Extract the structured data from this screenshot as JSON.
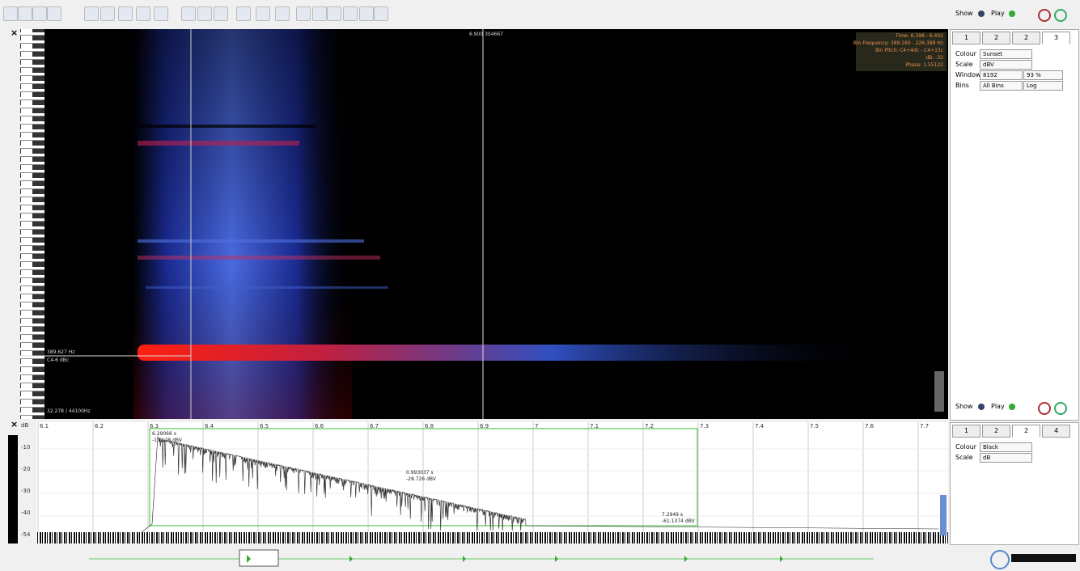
{
  "spectrogram": {
    "cursor_time": "6.900 304667",
    "frequency": "389.627 Hz",
    "note": "C4-6 dBc",
    "sample_rate": "32.278 / 44100Hz",
    "info": [
      "Time: 6.398 - 6.402",
      "Bin Frequency: 389.160 - 226.388 Hz",
      "Bin Pitch: C4+4dc - C4+13c",
      "dB: -32",
      "Phase: 1.55122"
    ]
  },
  "waveform": {
    "y_labels": [
      "dB",
      "-10",
      "-20",
      "-30",
      "-40",
      "-54"
    ],
    "ruler": [
      "6.1",
      "6.2",
      "6.3",
      "6.4",
      "6.5",
      "6.6",
      "6.7",
      "6.8",
      "6.9",
      "7",
      "7.1",
      "7.2",
      "7.3",
      "7.4",
      "7.5",
      "7.6",
      "7.7"
    ],
    "start_marker": [
      "6.29066 s",
      "-1.0128 dBV"
    ],
    "measure": [
      "0.993037 s",
      "-28.726 dBV"
    ],
    "end_marker": [
      "7.2949 s",
      "-61.1374 dBV"
    ]
  },
  "top_panel": {
    "tabs": [
      "1",
      "2",
      "2",
      "3"
    ],
    "rows": [
      {
        "label": "Colour",
        "value": "Sunset"
      },
      {
        "label": "Scale",
        "value": "dBV"
      },
      {
        "label": "Window",
        "value": "8192",
        "value2": "93 %"
      },
      {
        "label": "Bins",
        "value": "All Bins",
        "value2": "Log"
      }
    ],
    "show": "Show",
    "play": "Play"
  },
  "bottom_panel": {
    "tabs": [
      "1",
      "2",
      "2",
      "4"
    ],
    "rows": [
      {
        "label": "Colour",
        "value": "Black"
      },
      {
        "label": "Scale",
        "value": "dB"
      }
    ],
    "show": "Show",
    "play": "Play"
  }
}
